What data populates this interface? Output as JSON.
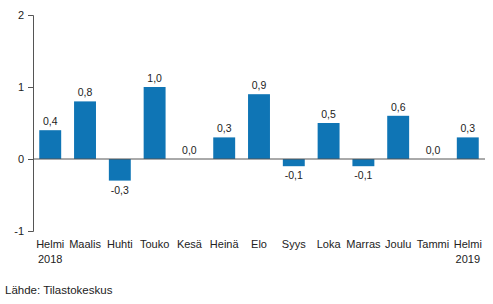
{
  "chart_data": {
    "type": "bar",
    "categories": [
      "Helmi\n2018",
      "Maalis",
      "Huhti",
      "Touko",
      "Kesä",
      "Heinä",
      "Elo",
      "Syys",
      "Loka",
      "Marras",
      "Joulu",
      "Tammi",
      "Helmi\n2019"
    ],
    "values": [
      0.4,
      0.8,
      -0.3,
      1.0,
      0.0,
      0.3,
      0.9,
      -0.1,
      0.5,
      -0.1,
      0.6,
      0.0,
      0.3
    ],
    "value_labels": [
      "0,4",
      "0,8",
      "-0,3",
      "1,0",
      "0,0",
      "0,3",
      "0,9",
      "-0,1",
      "0,5",
      "-0,1",
      "0,6",
      "0,0",
      "0,3"
    ],
    "color": "#0f75b5",
    "ylim": [
      -1,
      2
    ],
    "yticks": [
      -1,
      0,
      1,
      2
    ],
    "grid": false,
    "data_labels": true,
    "source": "Lähde: Tilastokeskus"
  }
}
